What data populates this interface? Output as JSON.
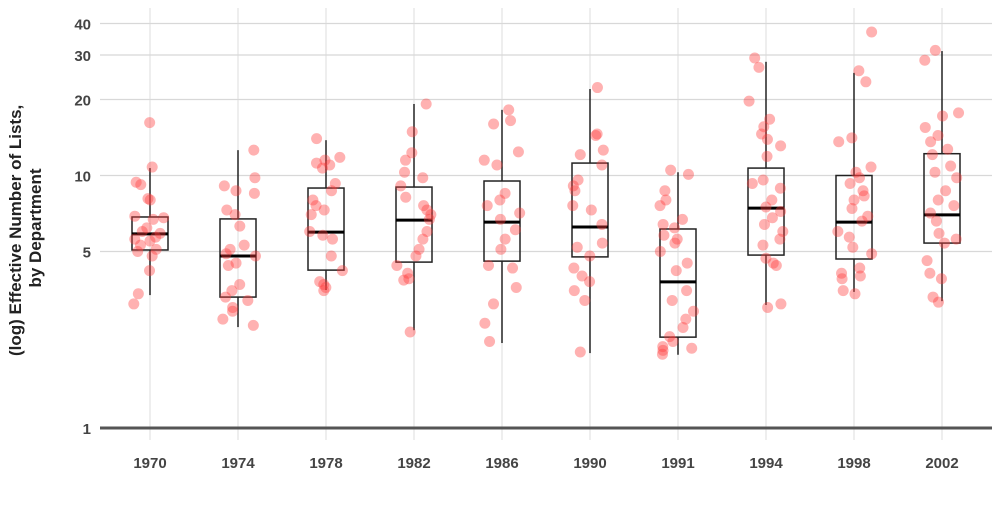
{
  "chart_data": {
    "type": "boxplot",
    "title": "",
    "xlabel": "",
    "ylabel": "(log) Effective Number of Lists,\nby Department",
    "ylabel_lines": [
      "(log) Effective Number of Lists,",
      "by Department"
    ],
    "yscale": "log",
    "ylim": [
      0.85,
      45
    ],
    "yticks": [
      1,
      5,
      10,
      20,
      30,
      40
    ],
    "ytick_labels": [
      "1",
      "5",
      "10",
      "20",
      "30",
      "40"
    ],
    "grid": true,
    "point_color": "#ff3b3b",
    "categories": [
      "1970",
      "1974",
      "1978",
      "1982",
      "1986",
      "1990",
      "1991",
      "1994",
      "1998",
      "2002"
    ],
    "boxes": [
      {
        "min": 3.36,
        "q1": 5.07,
        "median": 5.87,
        "q3": 6.85,
        "max": 10.7
      },
      {
        "min": 2.51,
        "q1": 3.3,
        "median": 4.8,
        "q3": 6.73,
        "max": 12.6
      },
      {
        "min": 3.52,
        "q1": 4.22,
        "median": 5.97,
        "q3": 8.92,
        "max": 13.8
      },
      {
        "min": 2.44,
        "q1": 4.54,
        "median": 6.66,
        "q3": 9.0,
        "max": 19.2
      },
      {
        "min": 2.17,
        "q1": 4.58,
        "median": 6.54,
        "q3": 9.51,
        "max": 18.2
      },
      {
        "min": 1.98,
        "q1": 4.76,
        "median": 6.25,
        "q3": 11.2,
        "max": 22.0
      },
      {
        "min": 1.95,
        "q1": 2.29,
        "median": 3.79,
        "q3": 6.14,
        "max": 10.3
      },
      {
        "min": 3.07,
        "q1": 4.84,
        "median": 7.43,
        "q3": 10.7,
        "max": 28.2
      },
      {
        "min": 3.46,
        "q1": 4.67,
        "median": 6.54,
        "q3": 10.0,
        "max": 25.5
      },
      {
        "min": 3.18,
        "q1": 5.4,
        "median": 6.98,
        "q3": 12.2,
        "max": 31.1
      }
    ],
    "points": [
      [
        16.2,
        10.8,
        9.4,
        9.2,
        8.1,
        8.0,
        6.9,
        6.8,
        6.7,
        6.2,
        6.0,
        5.9,
        5.7,
        5.6,
        5.5,
        5.3,
        5.1,
        5.0,
        4.8,
        4.2,
        3.4,
        3.1
      ],
      [
        12.6,
        9.8,
        9.1,
        8.7,
        8.5,
        7.3,
        7.0,
        6.3,
        5.3,
        5.1,
        4.9,
        4.8,
        4.5,
        4.4,
        3.7,
        3.5,
        3.3,
        3.2,
        3.0,
        2.9,
        2.7,
        2.55
      ],
      [
        14.0,
        11.8,
        11.5,
        11.2,
        11.0,
        10.7,
        9.3,
        8.7,
        8.0,
        7.6,
        7.3,
        7.0,
        6.0,
        5.8,
        5.6,
        4.8,
        4.2,
        3.8,
        3.7,
        3.6,
        3.5
      ],
      [
        19.2,
        14.9,
        12.3,
        11.5,
        10.3,
        9.8,
        9.1,
        8.2,
        7.6,
        7.3,
        7.0,
        6.7,
        6.0,
        5.6,
        5.1,
        4.8,
        4.4,
        4.1,
        3.9,
        3.85,
        2.4
      ],
      [
        18.2,
        16.5,
        16.0,
        12.4,
        11.5,
        11.0,
        8.5,
        8.0,
        7.6,
        7.1,
        6.7,
        6.1,
        5.6,
        5.1,
        4.4,
        4.3,
        3.6,
        3.1,
        2.6,
        2.2
      ],
      [
        22.3,
        14.6,
        14.4,
        12.6,
        12.1,
        11.0,
        9.6,
        9.1,
        8.7,
        7.6,
        7.3,
        6.4,
        5.4,
        5.2,
        4.8,
        4.3,
        4.0,
        3.8,
        3.5,
        3.2,
        2.0
      ],
      [
        10.5,
        10.1,
        8.7,
        8.0,
        7.6,
        6.7,
        6.4,
        6.2,
        5.8,
        5.6,
        5.4,
        5.0,
        4.5,
        4.2,
        3.5,
        3.2,
        2.9,
        2.7,
        2.5,
        2.3,
        2.2,
        2.1,
        2.07,
        2.03,
        1.96
      ],
      [
        29.2,
        26.8,
        19.7,
        16.7,
        15.6,
        14.6,
        13.9,
        13.1,
        11.9,
        9.6,
        9.3,
        8.9,
        8.0,
        7.5,
        7.2,
        6.8,
        6.4,
        6.0,
        5.6,
        5.3,
        4.7,
        4.5,
        4.4,
        3.1,
        3.0
      ],
      [
        37.0,
        26.0,
        23.5,
        14.1,
        13.6,
        10.8,
        10.3,
        9.8,
        9.3,
        8.7,
        8.3,
        8.0,
        7.4,
        6.9,
        6.6,
        6.0,
        5.7,
        5.2,
        4.9,
        4.3,
        4.1,
        4.0,
        3.9,
        3.5,
        3.4
      ],
      [
        31.3,
        28.6,
        17.7,
        17.2,
        15.5,
        14.4,
        13.6,
        12.7,
        12.1,
        10.9,
        10.3,
        9.8,
        8.7,
        8.0,
        7.6,
        7.1,
        6.6,
        5.9,
        5.6,
        5.4,
        4.6,
        4.1,
        3.9,
        3.3,
        3.15
      ]
    ]
  }
}
